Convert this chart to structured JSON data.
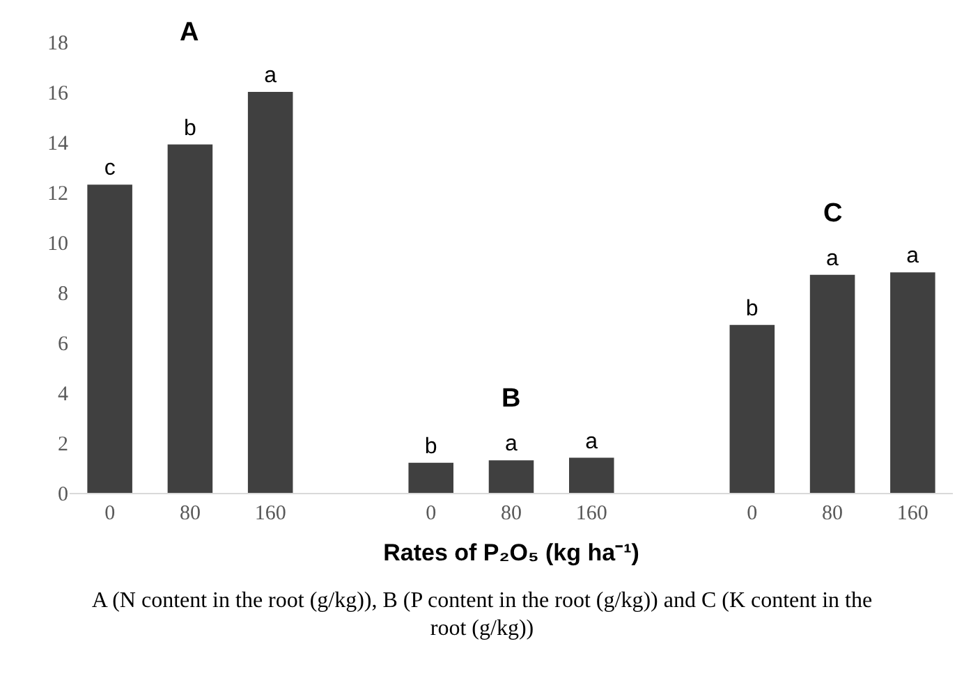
{
  "chart_data": {
    "type": "bar",
    "xlabel": "Rates of P₂O₅ (kg ha⁻¹)",
    "categories": [
      "0",
      "80",
      "160",
      null,
      "0",
      "80",
      "160",
      null,
      "0",
      "80",
      "160"
    ],
    "values": [
      12.3,
      13.9,
      16.0,
      null,
      1.2,
      1.3,
      1.4,
      null,
      6.7,
      8.7,
      8.8
    ],
    "value_labels": [
      "c",
      "b",
      "a",
      null,
      "b",
      "a",
      "a",
      null,
      "b",
      "a",
      "a"
    ],
    "color": "#404040",
    "ylim": [
      0,
      18
    ],
    "yticks": [
      0,
      2,
      4,
      6,
      8,
      10,
      12,
      14,
      16,
      18
    ],
    "grid": false,
    "annotations": [
      "A",
      "B",
      "C",
      "A (N content in the root (g/kg)), B (P content in the root  (g/kg)) and C (K content in the root (g/kg))"
    ]
  }
}
